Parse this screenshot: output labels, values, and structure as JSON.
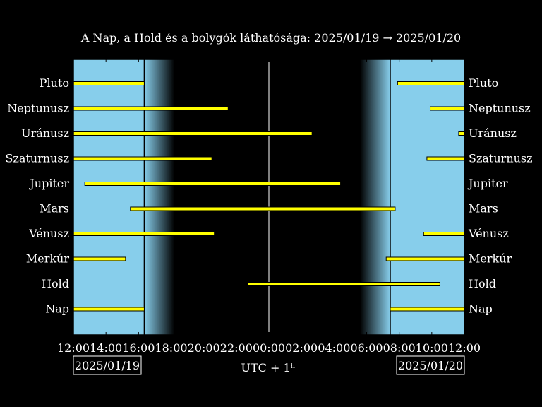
{
  "chart_data": {
    "type": "bar",
    "title": "A Nap, a Hold és a bolygók láthatósága: 2025/01/19 → 2025/01/20",
    "xlabel": "UTC + 1ʰ",
    "x_ticks": [
      "12:00",
      "14:00",
      "16:00",
      "18:00",
      "20:00",
      "22:00",
      "00:00",
      "02:00",
      "04:00",
      "06:00",
      "08:00",
      "10:00",
      "12:00"
    ],
    "x_range_hours": [
      0,
      24
    ],
    "start_date": "2025/01/19",
    "end_date": "2025/01/20",
    "daylight": [
      [
        0,
        4.35
      ],
      [
        19.45,
        24
      ]
    ],
    "twilight": [
      [
        4.35,
        6.2
      ],
      [
        17.6,
        19.45
      ]
    ],
    "categories": [
      "Pluto",
      "Neptunusz",
      "Uránusz",
      "Szaturnusz",
      "Jupiter",
      "Mars",
      "Vénusz",
      "Merkúr",
      "Hold",
      "Nap"
    ],
    "intervals": [
      [
        [
          0,
          4.35
        ],
        [
          19.9,
          24
        ]
      ],
      [
        [
          0,
          9.5
        ],
        [
          21.9,
          24
        ]
      ],
      [
        [
          0,
          14.65
        ],
        [
          23.65,
          24
        ]
      ],
      [
        [
          0,
          8.5
        ],
        [
          21.7,
          24
        ]
      ],
      [
        [
          0.7,
          16.4
        ]
      ],
      [
        [
          3.5,
          19.75
        ]
      ],
      [
        [
          0,
          8.65
        ],
        [
          21.5,
          24
        ]
      ],
      [
        [
          0,
          3.2
        ],
        [
          19.2,
          24
        ]
      ],
      [
        [
          10.7,
          22.5
        ]
      ],
      [
        [
          0,
          4.35
        ],
        [
          19.45,
          24
        ]
      ]
    ],
    "colors": {
      "day": "#87ceeb",
      "night": "#000000",
      "bar": "#ffff00",
      "bar_edge": "#000000"
    }
  }
}
